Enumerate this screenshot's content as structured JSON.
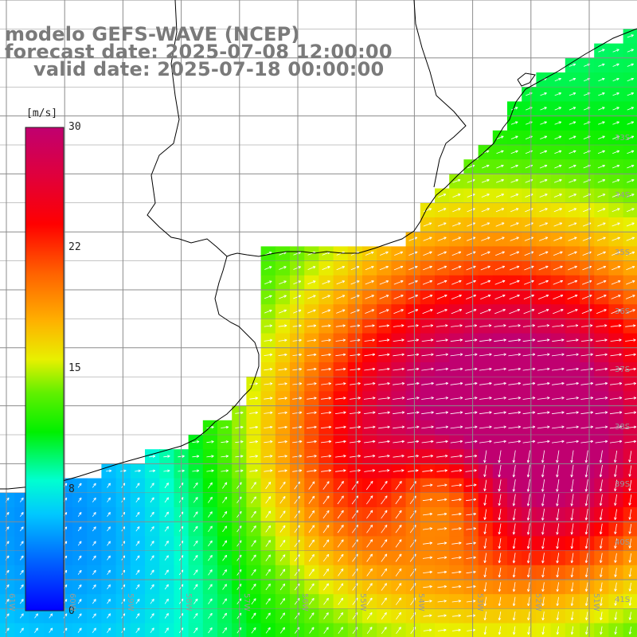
{
  "title": {
    "line1": "modelo GEFS-WAVE (NCEP)",
    "line2": "forecast date: 2025-07-08 12:00:00",
    "line3": "valid date: 2025-07-18 00:00:00"
  },
  "colorbar": {
    "unit": "[m/s]",
    "ticks": [
      "30",
      "22",
      "15",
      "8",
      "0"
    ],
    "min": 0,
    "max": 30
  },
  "lat_labels": [
    "33S",
    "34S",
    "35S",
    "36S",
    "37S",
    "38S",
    "39S",
    "40S",
    "41S"
  ],
  "lon_labels": [
    "61W",
    "60W",
    "59W",
    "58W",
    "57W",
    "56W",
    "55W",
    "54W",
    "53W",
    "52W",
    "51W"
  ],
  "colors": {
    "title": "#7a7a7a",
    "grid": "#8c8c8c",
    "coast": "#000000",
    "arrows": "#ffffff"
  }
}
